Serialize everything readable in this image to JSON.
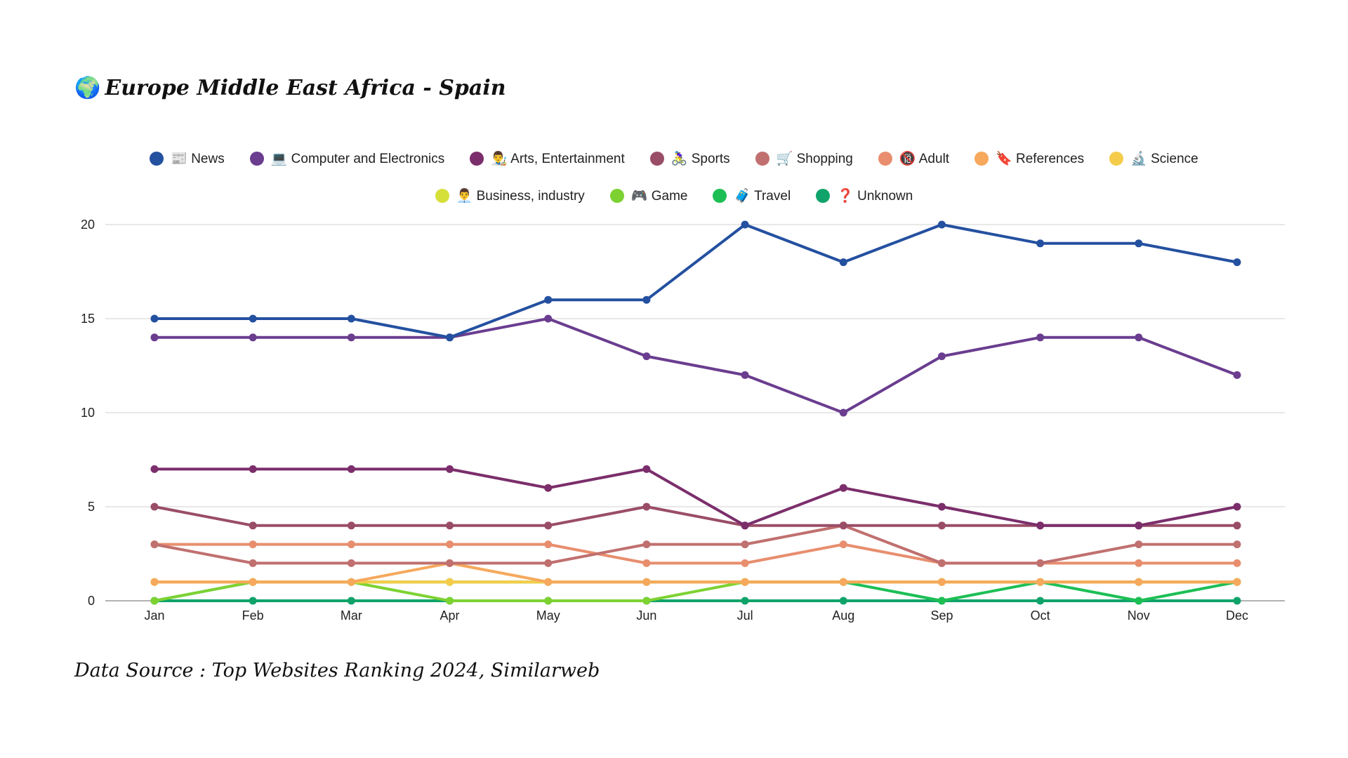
{
  "header": {
    "globe_icon": "🌍",
    "title": "Europe Middle East Africa - Spain"
  },
  "footer": {
    "source": "Data Source : Top Websites Ranking 2024, Similarweb"
  },
  "chart_data": {
    "type": "line",
    "title": "Europe Middle East Africa - Spain",
    "xlabel": "",
    "ylabel": "",
    "ylim": [
      0,
      20
    ],
    "yticks": [
      0,
      5,
      10,
      15,
      20
    ],
    "legend_position": "top-center",
    "grid": true,
    "categories": [
      "Jan",
      "Feb",
      "Mar",
      "Apr",
      "May",
      "Jun",
      "Jul",
      "Aug",
      "Sep",
      "Oct",
      "Nov",
      "Dec"
    ],
    "series": [
      {
        "name": "📰 News",
        "color": "#2450a0",
        "values": [
          15,
          15,
          15,
          14,
          16,
          16,
          20,
          18,
          20,
          19,
          19,
          18
        ]
      },
      {
        "name": "💻 Computer and Electronics",
        "color": "#6a3d8f",
        "values": [
          14,
          14,
          14,
          14,
          15,
          13,
          12,
          10,
          13,
          14,
          14,
          12
        ]
      },
      {
        "name": "👨‍🎨 Arts, Entertainment",
        "color": "#7b2e6b",
        "values": [
          7,
          7,
          7,
          7,
          6,
          7,
          4,
          6,
          5,
          4,
          4,
          5
        ]
      },
      {
        "name": "🚴‍♀️ Sports",
        "color": "#9a4d66",
        "values": [
          5,
          4,
          4,
          4,
          4,
          5,
          4,
          4,
          4,
          4,
          4,
          4
        ]
      },
      {
        "name": "🛒 Shopping",
        "color": "#c0706f",
        "values": [
          3,
          2,
          2,
          2,
          2,
          3,
          3,
          4,
          2,
          2,
          3,
          3
        ]
      },
      {
        "name": "🔞 Adult",
        "color": "#e88e6e",
        "values": [
          3,
          3,
          3,
          3,
          3,
          2,
          2,
          3,
          2,
          2,
          2,
          2
        ]
      },
      {
        "name": "🔖 References",
        "color": "#f6a85c",
        "values": [
          1,
          1,
          1,
          2,
          1,
          1,
          1,
          1,
          1,
          1,
          1,
          1
        ]
      },
      {
        "name": "🔬 Science",
        "color": "#f5cc4a",
        "values": [
          1,
          1,
          1,
          1,
          1,
          1,
          1,
          1,
          1,
          1,
          1,
          1
        ]
      },
      {
        "name": "👨‍💼 Business, industry",
        "color": "#d6e03a",
        "values": [
          1,
          1,
          1,
          1,
          1,
          1,
          1,
          1,
          1,
          1,
          1,
          1
        ]
      },
      {
        "name": "🎮 Game",
        "color": "#7dd232",
        "values": [
          0,
          1,
          1,
          0,
          0,
          0,
          1,
          1,
          1,
          1,
          1,
          1
        ]
      },
      {
        "name": "🧳 Travel",
        "color": "#1dbf55",
        "values": [
          0,
          1,
          1,
          1,
          1,
          1,
          1,
          1,
          0,
          1,
          0,
          1
        ]
      },
      {
        "name": "❓ Unknown",
        "color": "#0fa36a",
        "values": [
          0,
          0,
          0,
          0,
          0,
          0,
          0,
          0,
          0,
          0,
          0,
          0
        ]
      }
    ]
  }
}
